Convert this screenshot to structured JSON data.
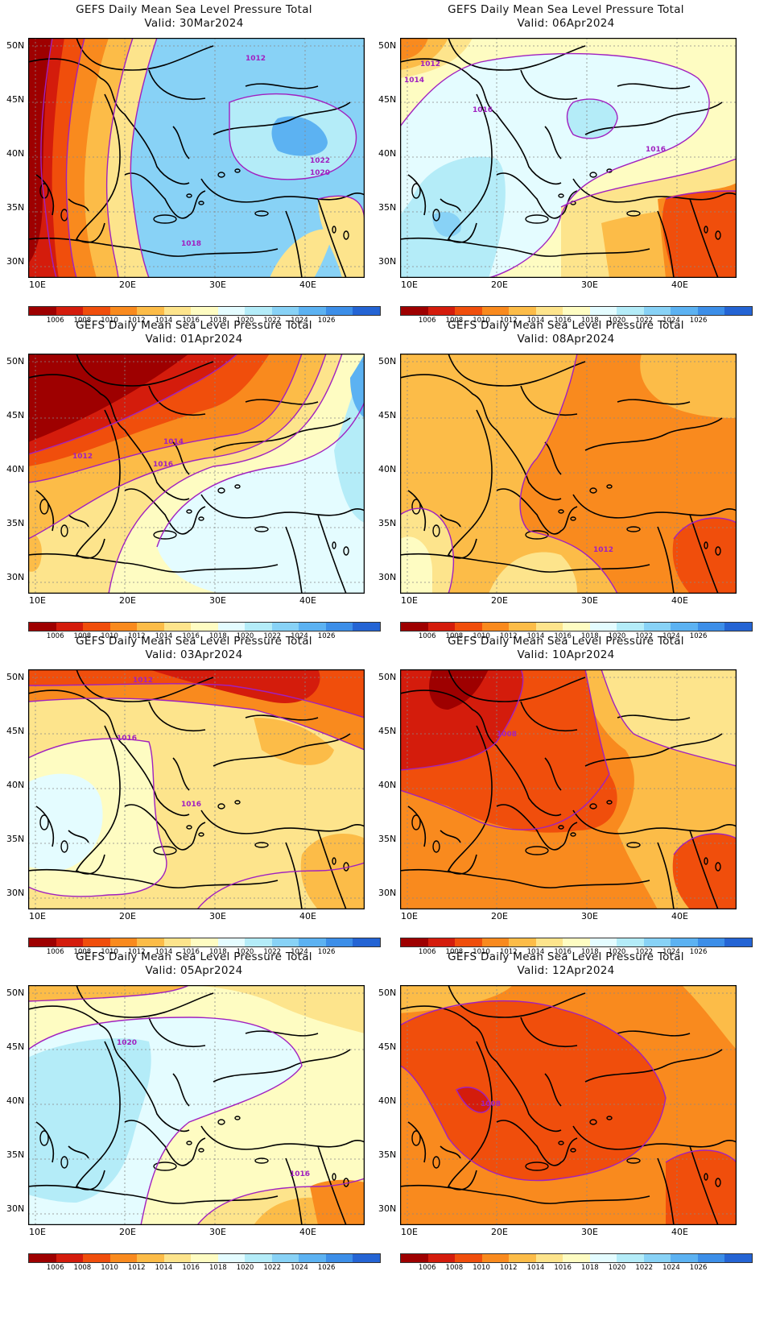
{
  "colorbar": {
    "labels": [
      "1006",
      "1008",
      "1010",
      "1012",
      "1014",
      "1016",
      "1018",
      "1020",
      "1022",
      "1024",
      "1026"
    ],
    "colors": [
      "#9e0000",
      "#d41c0c",
      "#f04e0c",
      "#f98a1e",
      "#fcbc48",
      "#fde48c",
      "#fefcc2",
      "#e4fcff",
      "#b4ecf8",
      "#88d2f6",
      "#5cb2f2",
      "#3c8ee8",
      "#2464d4"
    ]
  },
  "axes": {
    "lon_labels": [
      "10E",
      "20E",
      "30E",
      "40E"
    ],
    "lat_labels": [
      "50N",
      "45N",
      "40N",
      "35N",
      "30N"
    ]
  },
  "panels": [
    {
      "title": "GEFS Daily Mean Sea Level Pressure Total",
      "valid": "Valid:  30Mar2024",
      "contour_labels": [
        {
          "text": "1012"
        },
        {
          "text": "1022"
        },
        {
          "text": "1020"
        },
        {
          "text": "1018"
        }
      ]
    },
    {
      "title": "GEFS Daily Mean Sea Level Pressure Total",
      "valid": "Valid:  06Apr2024",
      "contour_labels": [
        {
          "text": "1012"
        },
        {
          "text": "1014"
        },
        {
          "text": "1016"
        },
        {
          "text": "1016"
        }
      ]
    },
    {
      "title": "GEFS Daily Mean Sea Level Pressure Total",
      "valid": "Valid:  01Apr2024",
      "contour_labels": [
        {
          "text": "1014"
        },
        {
          "text": "1012"
        },
        {
          "text": "1016"
        }
      ]
    },
    {
      "title": "GEFS Daily Mean Sea Level Pressure Total",
      "valid": "Valid:  08Apr2024",
      "contour_labels": [
        {
          "text": "1012"
        }
      ]
    },
    {
      "title": "GEFS Daily Mean Sea Level Pressure Total",
      "valid": "Valid:  03Apr2024",
      "contour_labels": [
        {
          "text": "1012"
        },
        {
          "text": "1016"
        },
        {
          "text": "1016"
        }
      ]
    },
    {
      "title": "GEFS Daily Mean Sea Level Pressure Total",
      "valid": "Valid:  10Apr2024",
      "contour_labels": [
        {
          "text": "1008"
        }
      ]
    },
    {
      "title": "GEFS Daily Mean Sea Level Pressure Total",
      "valid": "Valid:  05Apr2024",
      "contour_labels": [
        {
          "text": "1020"
        },
        {
          "text": "1016"
        }
      ]
    },
    {
      "title": "GEFS Daily Mean Sea Level Pressure Total",
      "valid": "Valid:  12Apr2024",
      "contour_labels": [
        {
          "text": "1008"
        }
      ]
    }
  ]
}
